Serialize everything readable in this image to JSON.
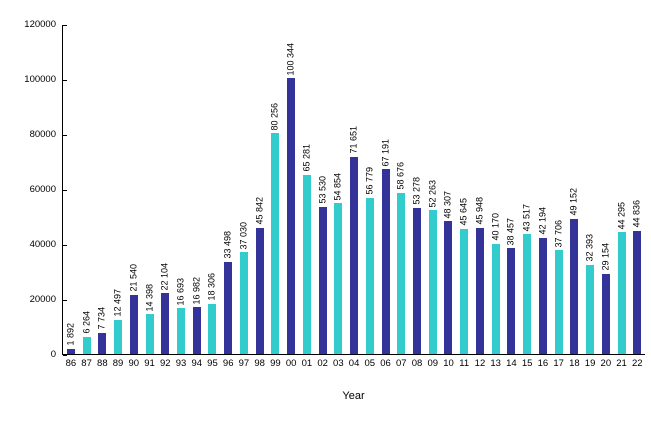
{
  "chart_data": {
    "type": "bar",
    "title": "",
    "xlabel": "Year",
    "ylabel": "",
    "categories": [
      "86",
      "87",
      "88",
      "89",
      "90",
      "91",
      "92",
      "93",
      "94",
      "95",
      "96",
      "97",
      "98",
      "99",
      "00",
      "01",
      "02",
      "03",
      "04",
      "05",
      "06",
      "07",
      "08",
      "09",
      "10",
      "11",
      "12",
      "13",
      "14",
      "15",
      "16",
      "17",
      "18",
      "19",
      "20",
      "21",
      "22"
    ],
    "values": [
      1892,
      6264,
      7734,
      12497,
      21540,
      14398,
      22104,
      16693,
      16982,
      18306,
      33498,
      37030,
      45842,
      80256,
      100344,
      65281,
      53530,
      54854,
      71651,
      56779,
      67191,
      58676,
      53278,
      52263,
      48307,
      45645,
      45948,
      40170,
      38457,
      43517,
      42194,
      37706,
      49152,
      32393,
      29154,
      44295,
      44836
    ],
    "value_labels": [
      "1 892",
      "6 264",
      "7 734",
      "12 497",
      "21 540",
      "14 398",
      "22 104",
      "16 693",
      "16 982",
      "18 306",
      "33 498",
      "37 030",
      "45 842",
      "80 256",
      "100 344",
      "65 281",
      "53 530",
      "54 854",
      "71 651",
      "56 779",
      "67 191",
      "58 676",
      "53 278",
      "52 263",
      "48 307",
      "45 645",
      "45 948",
      "40 170",
      "38 457",
      "43 517",
      "42 194",
      "37 706",
      "49 152",
      "32 393",
      "29 154",
      "44 295",
      "44 836"
    ],
    "ylim": [
      0,
      120000
    ],
    "yticks": [
      0,
      20000,
      40000,
      60000,
      80000,
      100000,
      120000
    ],
    "ytick_labels": [
      "0",
      "20000",
      "40000",
      "60000",
      "80000",
      "100000",
      "120000"
    ],
    "grid": false,
    "legend_position": "none",
    "bar_colors_alternating": [
      "#333399",
      "#33CCCC"
    ],
    "axis_color": "#000000",
    "label_color": "#000000"
  }
}
